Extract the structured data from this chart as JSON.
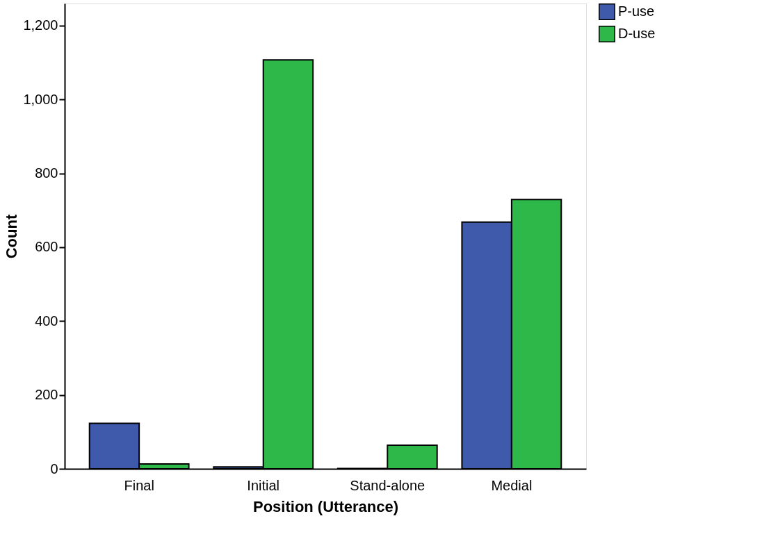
{
  "chart_data": {
    "type": "bar",
    "xlabel": "Position (Utterance)",
    "ylabel": "Count",
    "categories": [
      "Final",
      "Initial",
      "Stand-alone",
      "Medial"
    ],
    "series": [
      {
        "name": "P-use",
        "color": "#3f59ab",
        "values": [
          123,
          5,
          1,
          668
        ]
      },
      {
        "name": "D-use",
        "color": "#2fb84a",
        "values": [
          13,
          1107,
          64,
          729
        ]
      }
    ],
    "ylim": [
      0,
      1260
    ],
    "yticks": [
      0,
      200,
      400,
      600,
      800,
      {
        "value": 1000,
        "label": "1,000"
      },
      {
        "value": 1200,
        "label": "1,200"
      }
    ],
    "grid": false,
    "legend": "top right"
  }
}
